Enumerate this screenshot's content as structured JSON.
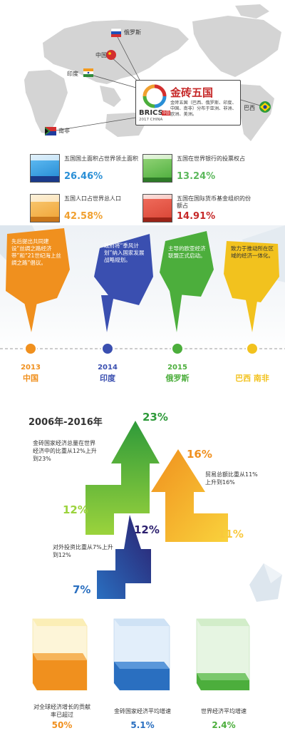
{
  "map": {
    "countries": {
      "russia": "俄罗斯",
      "china": "中国",
      "india": "印度",
      "south_africa": "南非",
      "brazil": "巴西"
    },
    "brics_box": {
      "title": "金砖五国",
      "description": "金砖五国（巴西、俄罗斯、印度、中国、南非）分布于亚洲、非洲、欧洲、美洲。",
      "logo_word": "BRICS",
      "logo_sub": "2017 CHINA",
      "logo_badge": "中国"
    }
  },
  "stats": [
    {
      "text": "五国国土面积占世界领土面积",
      "value": "26.46%",
      "color": "#2a8fd6"
    },
    {
      "text": "五国在世界银行的投票权占",
      "value": "13.24%",
      "color": "#5cb85c"
    },
    {
      "text": "五国人口占世界总人口",
      "value": "42.58%",
      "color": "#f0a030"
    },
    {
      "text": "五国在国际货币基金组织的份额占",
      "value": "14.91%",
      "color": "#c62828"
    }
  ],
  "timeline": [
    {
      "year": "2013",
      "country": "中国",
      "text": "先后提出共同建设“丝绸之路经济带”和“21世纪海上丝绸之路”倡议。",
      "color": "#f0901e"
    },
    {
      "year": "2014",
      "country": "印度",
      "text": "政府将“季风计划”纳入国家发展战略规划。",
      "color": "#3a4fb0"
    },
    {
      "year": "2015",
      "country": "俄罗斯",
      "text": "主导的欧亚经济联盟正式启动。",
      "color": "#4cae3c"
    },
    {
      "year": "",
      "country": "巴西 南非",
      "text": "致力于推动所在区域的经济一体化。",
      "color": "#f2c21e"
    }
  ],
  "arrows": {
    "period": "2006年-2016年",
    "gdp": {
      "text": "金砖国家经济总量在世界经济中的比重从12%上升到23%",
      "from": "12%",
      "to": "23%",
      "color": "#4cae3c"
    },
    "trade": {
      "text": "贸易总额比重从11%上升到16%",
      "from": "11%",
      "to": "16%",
      "color": "#f0901e"
    },
    "fdi": {
      "text": "对外投资比重从7%上升到12%",
      "from": "7%",
      "to": "12%",
      "color": "#3a3f9a"
    }
  },
  "prisms": [
    {
      "label": "对全球经济增长的贡献率已超过",
      "value": "50%",
      "fill": 0.5,
      "color": "#f0901e"
    },
    {
      "label": "金砖国家经济平均增速",
      "value": "5.1%",
      "fill": 0.4,
      "color": "#2a6fc0"
    },
    {
      "label": "世界经济平均增速",
      "value": "2.4%",
      "fill": 0.22,
      "color": "#4cae3c"
    }
  ]
}
